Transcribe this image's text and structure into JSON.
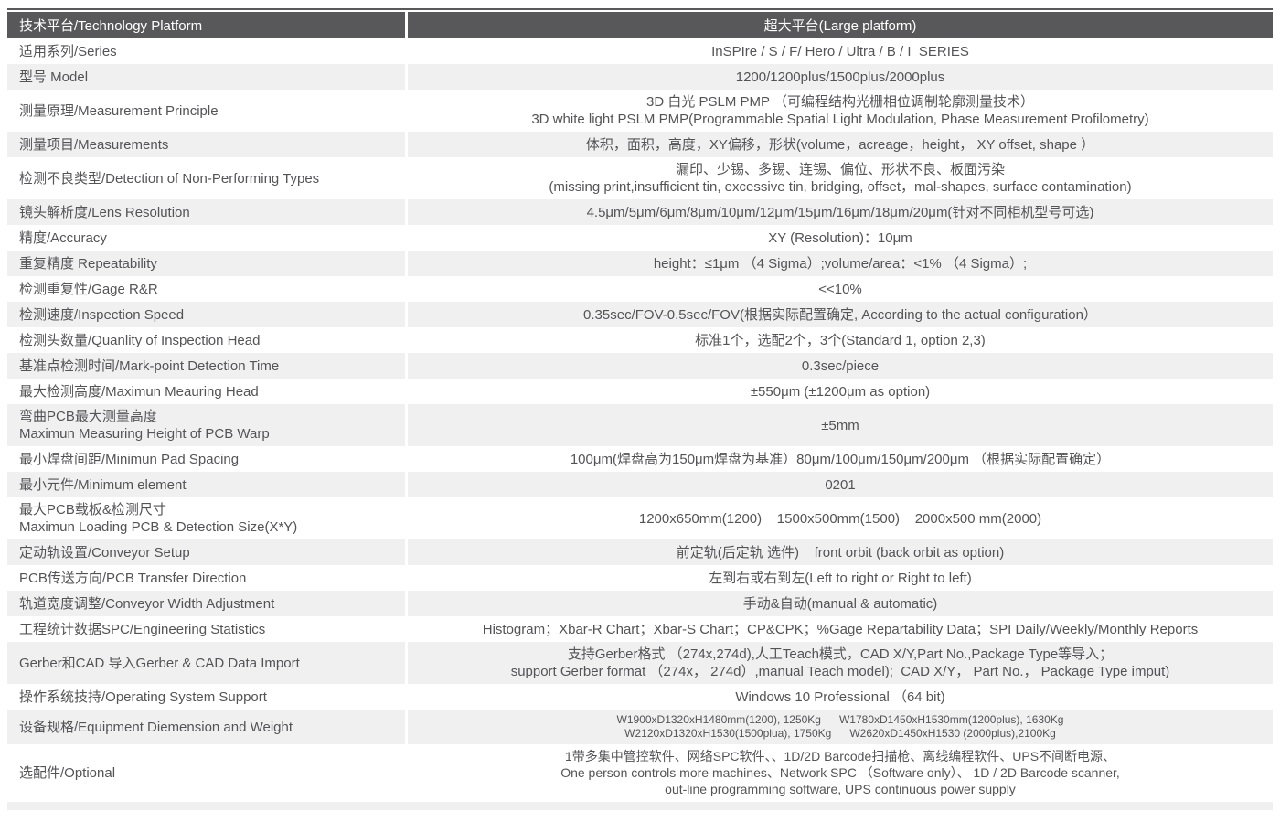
{
  "colors": {
    "header_bg": "#58585a",
    "header_text": "#ffffff",
    "stripe_bg": "#f0f0f1",
    "text": "#545457",
    "top_line": "#58585a"
  },
  "table": {
    "header": {
      "left": "技术平台/Technology Platform",
      "right": "超大平台(Large platform)"
    },
    "rows": [
      {
        "label": [
          "适用系列/Series"
        ],
        "value": [
          "InSPIre / S / F/ Hero / Ultra / B / I  SERIES"
        ]
      },
      {
        "label": [
          "型号 Model"
        ],
        "value": [
          "1200/1200plus/1500plus/2000plus"
        ]
      },
      {
        "label": [
          "测量原理/Measurement Principle"
        ],
        "value": [
          "3D 白光 PSLM PMP （可编程结构光栅相位调制轮廓测量技术）",
          "3D white light PSLM PMP(Programmable Spatial Light Modulation, Phase Measurement Profilometry)"
        ]
      },
      {
        "label": [
          "测量项目/Measurements"
        ],
        "value": [
          "体积，面积，高度，XY偏移，形状(volume，acreage，height， XY offset, shape ）"
        ]
      },
      {
        "label": [
          "检测不良类型/Detection of Non-Performing Types"
        ],
        "value": [
          "漏印、少锡、多锡、连锡、偏位、形状不良、板面污染",
          "(missing print,insufficient tin, excessive tin, bridging, offset，mal-shapes, surface contamination)"
        ]
      },
      {
        "label": [
          "镜头解析度/Lens Resolution"
        ],
        "value": [
          "4.5μm/5μm/6μm/8μm/10μm/12μm/15μm/16μm/18μm/20μm(针对不同相机型号可选)"
        ]
      },
      {
        "label": [
          "精度/Accuracy"
        ],
        "value": [
          "XY (Resolution)：10μm"
        ]
      },
      {
        "label": [
          "重复精度 Repeatability"
        ],
        "value": [
          "height：≤1μm （4 Sigma）;volume/area：<1% （4 Sigma）;"
        ]
      },
      {
        "label": [
          "检测重复性/Gage R&R"
        ],
        "value": [
          "<<10%"
        ]
      },
      {
        "label": [
          "检测速度/Inspection Speed"
        ],
        "value": [
          "0.35sec/FOV-0.5sec/FOV(根据实际配置确定, According to the actual configuration）"
        ]
      },
      {
        "label": [
          "检测头数量/Quanlity of Inspection Head"
        ],
        "value": [
          "标准1个，选配2个，3个(Standard 1, option 2,3)"
        ]
      },
      {
        "label": [
          "基准点检测时间/Mark-point Detection Time"
        ],
        "value": [
          "0.3sec/piece"
        ]
      },
      {
        "label": [
          "最大检测高度/Maximun Meauring Head"
        ],
        "value": [
          "±550μm (±1200μm as option)"
        ]
      },
      {
        "label": [
          "弯曲PCB最大测量高度",
          "Maximun Measuring Height of PCB Warp"
        ],
        "value": [
          "±5mm"
        ]
      },
      {
        "label": [
          "最小焊盘间距/Minimun Pad Spacing"
        ],
        "value": [
          "100μm(焊盘高为150μm焊盘为基准）80μm/100μm/150μm/200μm （根据实际配置确定）"
        ]
      },
      {
        "label": [
          "最小元件/Minimum element"
        ],
        "value": [
          "0201"
        ]
      },
      {
        "label": [
          "最大PCB载板&检测尺寸",
          "Maximun Loading PCB & Detection Size(X*Y)"
        ],
        "value": [
          "1200x650mm(1200)    1500x500mm(1500)    2000x500 mm(2000)"
        ]
      },
      {
        "label": [
          "定动轨设置/Conveyor Setup"
        ],
        "value": [
          "前定轨(后定轨 选件)    front orbit (back orbit as option)"
        ]
      },
      {
        "label": [
          "PCB传送方向/PCB Transfer Direction"
        ],
        "value": [
          "左到右或右到左(Left to right or Right to left)"
        ]
      },
      {
        "label": [
          "轨道宽度调整/Conveyor Width Adjustment"
        ],
        "value": [
          "手动&自动(manual & automatic)"
        ]
      },
      {
        "label": [
          "工程统计数据SPC/Engineering Statistics"
        ],
        "value": [
          "Histogram；Xbar-R Chart；Xbar-S Chart；CP&CPK；%Gage Repartability Data；SPI Daily/Weekly/Monthly Reports"
        ]
      },
      {
        "label": [
          "Gerber和CAD 导入Gerber & CAD Data Import"
        ],
        "value": [
          "支持Gerber格式 （274x,274d),人工Teach模式，CAD X/Y,Part No.,Package Type等导入；",
          "support Gerber format （274x， 274d）,manual Teach model);  CAD X/Y， Part No.， Package Type imput)"
        ]
      },
      {
        "label": [
          "操作系统技持/Operating System Support"
        ],
        "value": [
          "Windows 10 Professional （64 bit)"
        ]
      },
      {
        "label": [
          "设备规格/Equipment Diemension and Weight"
        ],
        "size": "small",
        "value": [
          "W1900xD1320xH1480mm(1200), 1250Kg      W1780xD1450xH1530mm(1200plus), 1630Kg",
          "W2120xD1320xH1530(1500plua), 1750Kg      W2620xD1450xH1530 (2000plus),2100Kg"
        ]
      },
      {
        "label": [
          "选配件/Optional"
        ],
        "size": "medium",
        "value": [
          "1带多集中管控软件、网络SPC软件、、1D/2D Barcode扫描枪、离线编程软件、UPS不间断电源、",
          "One person controls more machines、Network SPC （Software only）、 1D / 2D Barcode scanner,",
          "out-line programming software, UPS continuous power supply"
        ]
      }
    ]
  }
}
